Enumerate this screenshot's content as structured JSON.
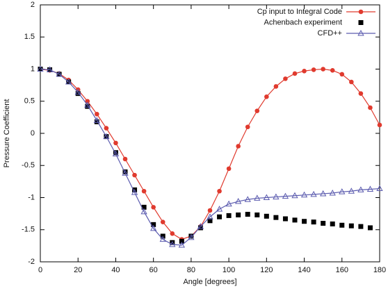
{
  "chart_data": {
    "type": "line",
    "xlabel": "Angle [degrees]",
    "ylabel": "Pressure Coefficient",
    "xlim": [
      0,
      180
    ],
    "xticks": [
      0,
      20,
      40,
      60,
      80,
      100,
      120,
      140,
      160,
      180
    ],
    "ylim": [
      -2,
      2
    ],
    "yticks": [
      -2,
      -1.5,
      -1,
      -0.5,
      0,
      0.5,
      1,
      1.5,
      2
    ],
    "legend": "upper right",
    "series": [
      {
        "name": "Cp input to Integral Code",
        "color": "#e03a2e",
        "marker": "circle",
        "line": true,
        "x": [
          0,
          5,
          10,
          15,
          20,
          25,
          30,
          35,
          40,
          45,
          50,
          55,
          60,
          65,
          70,
          75,
          80,
          85,
          90,
          95,
          100,
          105,
          110,
          115,
          120,
          125,
          130,
          135,
          140,
          145,
          150,
          155,
          160,
          165,
          170,
          175,
          180
        ],
        "values": [
          1.0,
          0.98,
          0.93,
          0.83,
          0.68,
          0.5,
          0.3,
          0.08,
          -0.15,
          -0.4,
          -0.65,
          -0.9,
          -1.15,
          -1.38,
          -1.56,
          -1.65,
          -1.6,
          -1.45,
          -1.2,
          -0.9,
          -0.55,
          -0.2,
          0.1,
          0.35,
          0.57,
          0.73,
          0.85,
          0.93,
          0.97,
          0.99,
          1.0,
          0.98,
          0.92,
          0.8,
          0.62,
          0.4,
          0.13
        ]
      },
      {
        "name": "Achenbach experiment",
        "color": "#000000",
        "marker": "square",
        "line": false,
        "x": [
          0,
          5,
          10,
          15,
          20,
          25,
          30,
          35,
          40,
          45,
          50,
          55,
          60,
          65,
          70,
          75,
          80,
          85,
          90,
          95,
          100,
          105,
          110,
          115,
          120,
          125,
          130,
          135,
          140,
          145,
          150,
          155,
          160,
          165,
          170,
          175
        ],
        "values": [
          1.0,
          0.99,
          0.92,
          0.8,
          0.62,
          0.42,
          0.18,
          -0.05,
          -0.3,
          -0.6,
          -0.88,
          -1.15,
          -1.42,
          -1.6,
          -1.7,
          -1.68,
          -1.6,
          -1.47,
          -1.36,
          -1.3,
          -1.28,
          -1.27,
          -1.26,
          -1.27,
          -1.29,
          -1.31,
          -1.33,
          -1.35,
          -1.37,
          -1.38,
          -1.4,
          -1.41,
          -1.43,
          -1.44,
          -1.45,
          -1.47
        ]
      },
      {
        "name": "CFD++",
        "color": "#5a5aae",
        "marker": "triangle",
        "line": true,
        "x": [
          0,
          5,
          10,
          15,
          20,
          25,
          30,
          35,
          40,
          45,
          50,
          55,
          60,
          65,
          70,
          75,
          80,
          85,
          90,
          95,
          100,
          105,
          110,
          115,
          120,
          125,
          130,
          135,
          140,
          145,
          150,
          155,
          160,
          165,
          170,
          175,
          180
        ],
        "values": [
          1.0,
          0.99,
          0.92,
          0.8,
          0.64,
          0.44,
          0.2,
          -0.05,
          -0.32,
          -0.62,
          -0.92,
          -1.22,
          -1.48,
          -1.65,
          -1.73,
          -1.74,
          -1.62,
          -1.45,
          -1.3,
          -1.18,
          -1.1,
          -1.06,
          -1.03,
          -1.01,
          -1.0,
          -0.99,
          -0.98,
          -0.97,
          -0.96,
          -0.95,
          -0.94,
          -0.93,
          -0.91,
          -0.9,
          -0.88,
          -0.87,
          -0.86
        ]
      }
    ]
  }
}
